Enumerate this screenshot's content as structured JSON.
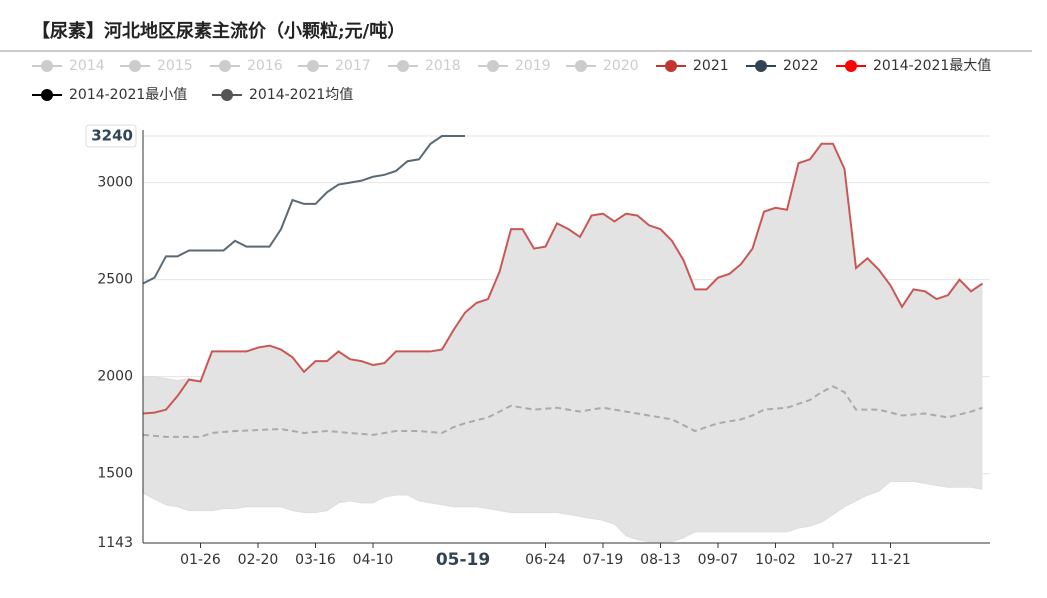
{
  "chart_data": {
    "type": "line",
    "title": "【尿素】河北地区尿素主流价（小颗粒;元/吨）",
    "categories": [
      null,
      null,
      null,
      null,
      null,
      "01-26",
      null,
      null,
      null,
      null,
      "02-20",
      null,
      null,
      null,
      null,
      "03-16",
      null,
      null,
      null,
      null,
      "04-10",
      null,
      null,
      null,
      null,
      null,
      null,
      null,
      null,
      null,
      null,
      null,
      null,
      null,
      null,
      "06-24",
      null,
      null,
      null,
      null,
      "07-19",
      null,
      null,
      null,
      null,
      "08-13",
      null,
      null,
      null,
      null,
      "09-07",
      null,
      null,
      null,
      null,
      "10-02",
      null,
      null,
      null,
      null,
      "10-27",
      null,
      null,
      null,
      null,
      "11-21",
      null,
      null,
      null,
      null,
      null,
      null,
      null,
      null
    ],
    "pointer_label": "05-19",
    "ylim": [
      1143,
      3240
    ],
    "yticks": [
      1143,
      1500,
      2000,
      2500,
      3000,
      3240
    ],
    "grid": true,
    "series": [
      {
        "name": "2014",
        "color": "#cccccc",
        "visible": false
      },
      {
        "name": "2015",
        "color": "#cccccc",
        "visible": false
      },
      {
        "name": "2016",
        "color": "#cccccc",
        "visible": false
      },
      {
        "name": "2017",
        "color": "#cccccc",
        "visible": false
      },
      {
        "name": "2018",
        "color": "#cccccc",
        "visible": false
      },
      {
        "name": "2019",
        "color": "#cccccc",
        "visible": false
      },
      {
        "name": "2020",
        "color": "#cccccc",
        "visible": false
      },
      {
        "name": "2021",
        "color": "#c23531",
        "style": "line",
        "values": [
          1810,
          1815,
          1830,
          1900,
          1985,
          1975,
          2130,
          2130,
          2130,
          2130,
          2150,
          2160,
          2140,
          2100,
          2025,
          2080,
          2080,
          2130,
          2090,
          2080,
          2060,
          2070,
          2130,
          2130,
          2130,
          2130,
          2140,
          2240,
          2330,
          2380,
          2400,
          2540,
          2760,
          2760,
          2660,
          2670,
          2790,
          2760,
          2720,
          2830,
          2840,
          2800,
          2840,
          2830,
          2780,
          2760,
          2700,
          2600,
          2450,
          2450,
          2510,
          2530,
          2580,
          2660,
          2850,
          2870,
          2860,
          3100,
          3120,
          3200,
          3200,
          3070,
          2560,
          2610,
          2550,
          2470,
          2360,
          2450,
          2440,
          2400,
          2420,
          2500,
          2440,
          2480
        ]
      },
      {
        "name": "2022",
        "color": "#2f4554",
        "style": "line",
        "values": [
          2480,
          2510,
          2620,
          2620,
          2650,
          2650,
          2650,
          2650,
          2700,
          2670,
          2670,
          2670,
          2760,
          2910,
          2890,
          2890,
          2950,
          2990,
          3000,
          3010,
          3030,
          3040,
          3060,
          3110,
          3120,
          3200,
          3240,
          3240,
          3240,
          null,
          null,
          null,
          null,
          null,
          null,
          null,
          null,
          null,
          null,
          null,
          null,
          null,
          null,
          null,
          null,
          null,
          null,
          null,
          null,
          null,
          null,
          null,
          null,
          null,
          null,
          null,
          null,
          null,
          null,
          null,
          null,
          null,
          null,
          null,
          null,
          null,
          null,
          null,
          null,
          null,
          null,
          null,
          null,
          null
        ]
      },
      {
        "name": "2014-2021最大值",
        "color": "#ff0000",
        "style": "area-top",
        "values": [
          2000,
          2000,
          1990,
          1980,
          1990,
          1975,
          2130,
          2130,
          2130,
          2130,
          2150,
          2160,
          2140,
          2100,
          2025,
          2080,
          2080,
          2130,
          2090,
          2080,
          2060,
          2070,
          2130,
          2130,
          2130,
          2130,
          2140,
          2240,
          2330,
          2380,
          2400,
          2540,
          2760,
          2760,
          2660,
          2670,
          2790,
          2760,
          2720,
          2830,
          2840,
          2800,
          2840,
          2830,
          2780,
          2760,
          2700,
          2600,
          2450,
          2450,
          2510,
          2530,
          2580,
          2660,
          2850,
          2870,
          2860,
          3100,
          3120,
          3200,
          3200,
          3070,
          2560,
          2610,
          2550,
          2470,
          2360,
          2450,
          2440,
          2400,
          2420,
          2500,
          2440,
          2480
        ]
      },
      {
        "name": "2014-2021最小值",
        "color": "#000000",
        "style": "area-bottom",
        "values": [
          1400,
          1370,
          1340,
          1330,
          1310,
          1310,
          1310,
          1320,
          1320,
          1330,
          1330,
          1330,
          1330,
          1310,
          1300,
          1300,
          1310,
          1350,
          1360,
          1350,
          1350,
          1380,
          1390,
          1390,
          1360,
          1350,
          1340,
          1330,
          1330,
          1330,
          1320,
          1310,
          1300,
          1300,
          1300,
          1300,
          1300,
          1290,
          1280,
          1270,
          1260,
          1240,
          1180,
          1160,
          1150,
          1150,
          1150,
          1170,
          1200,
          1200,
          1200,
          1200,
          1200,
          1200,
          1200,
          1200,
          1200,
          1220,
          1230,
          1250,
          1290,
          1330,
          1360,
          1390,
          1410,
          1460,
          1460,
          1460,
          1450,
          1440,
          1430,
          1430,
          1430,
          1420
        ]
      },
      {
        "name": "2014-2021均值",
        "color": "#555555",
        "style": "dashed",
        "values": [
          1700,
          1695,
          1690,
          1690,
          1690,
          1690,
          1710,
          1715,
          1720,
          1722,
          1725,
          1728,
          1730,
          1720,
          1710,
          1715,
          1720,
          1715,
          1710,
          1705,
          1700,
          1710,
          1720,
          1720,
          1720,
          1715,
          1710,
          1740,
          1760,
          1775,
          1790,
          1820,
          1850,
          1840,
          1830,
          1835,
          1840,
          1830,
          1820,
          1830,
          1840,
          1830,
          1820,
          1810,
          1800,
          1790,
          1780,
          1750,
          1720,
          1740,
          1760,
          1770,
          1780,
          1800,
          1830,
          1835,
          1840,
          1860,
          1880,
          1920,
          1950,
          1920,
          1830,
          1830,
          1830,
          1815,
          1800,
          1805,
          1810,
          1800,
          1790,
          1805,
          1820,
          1840
        ]
      }
    ]
  }
}
